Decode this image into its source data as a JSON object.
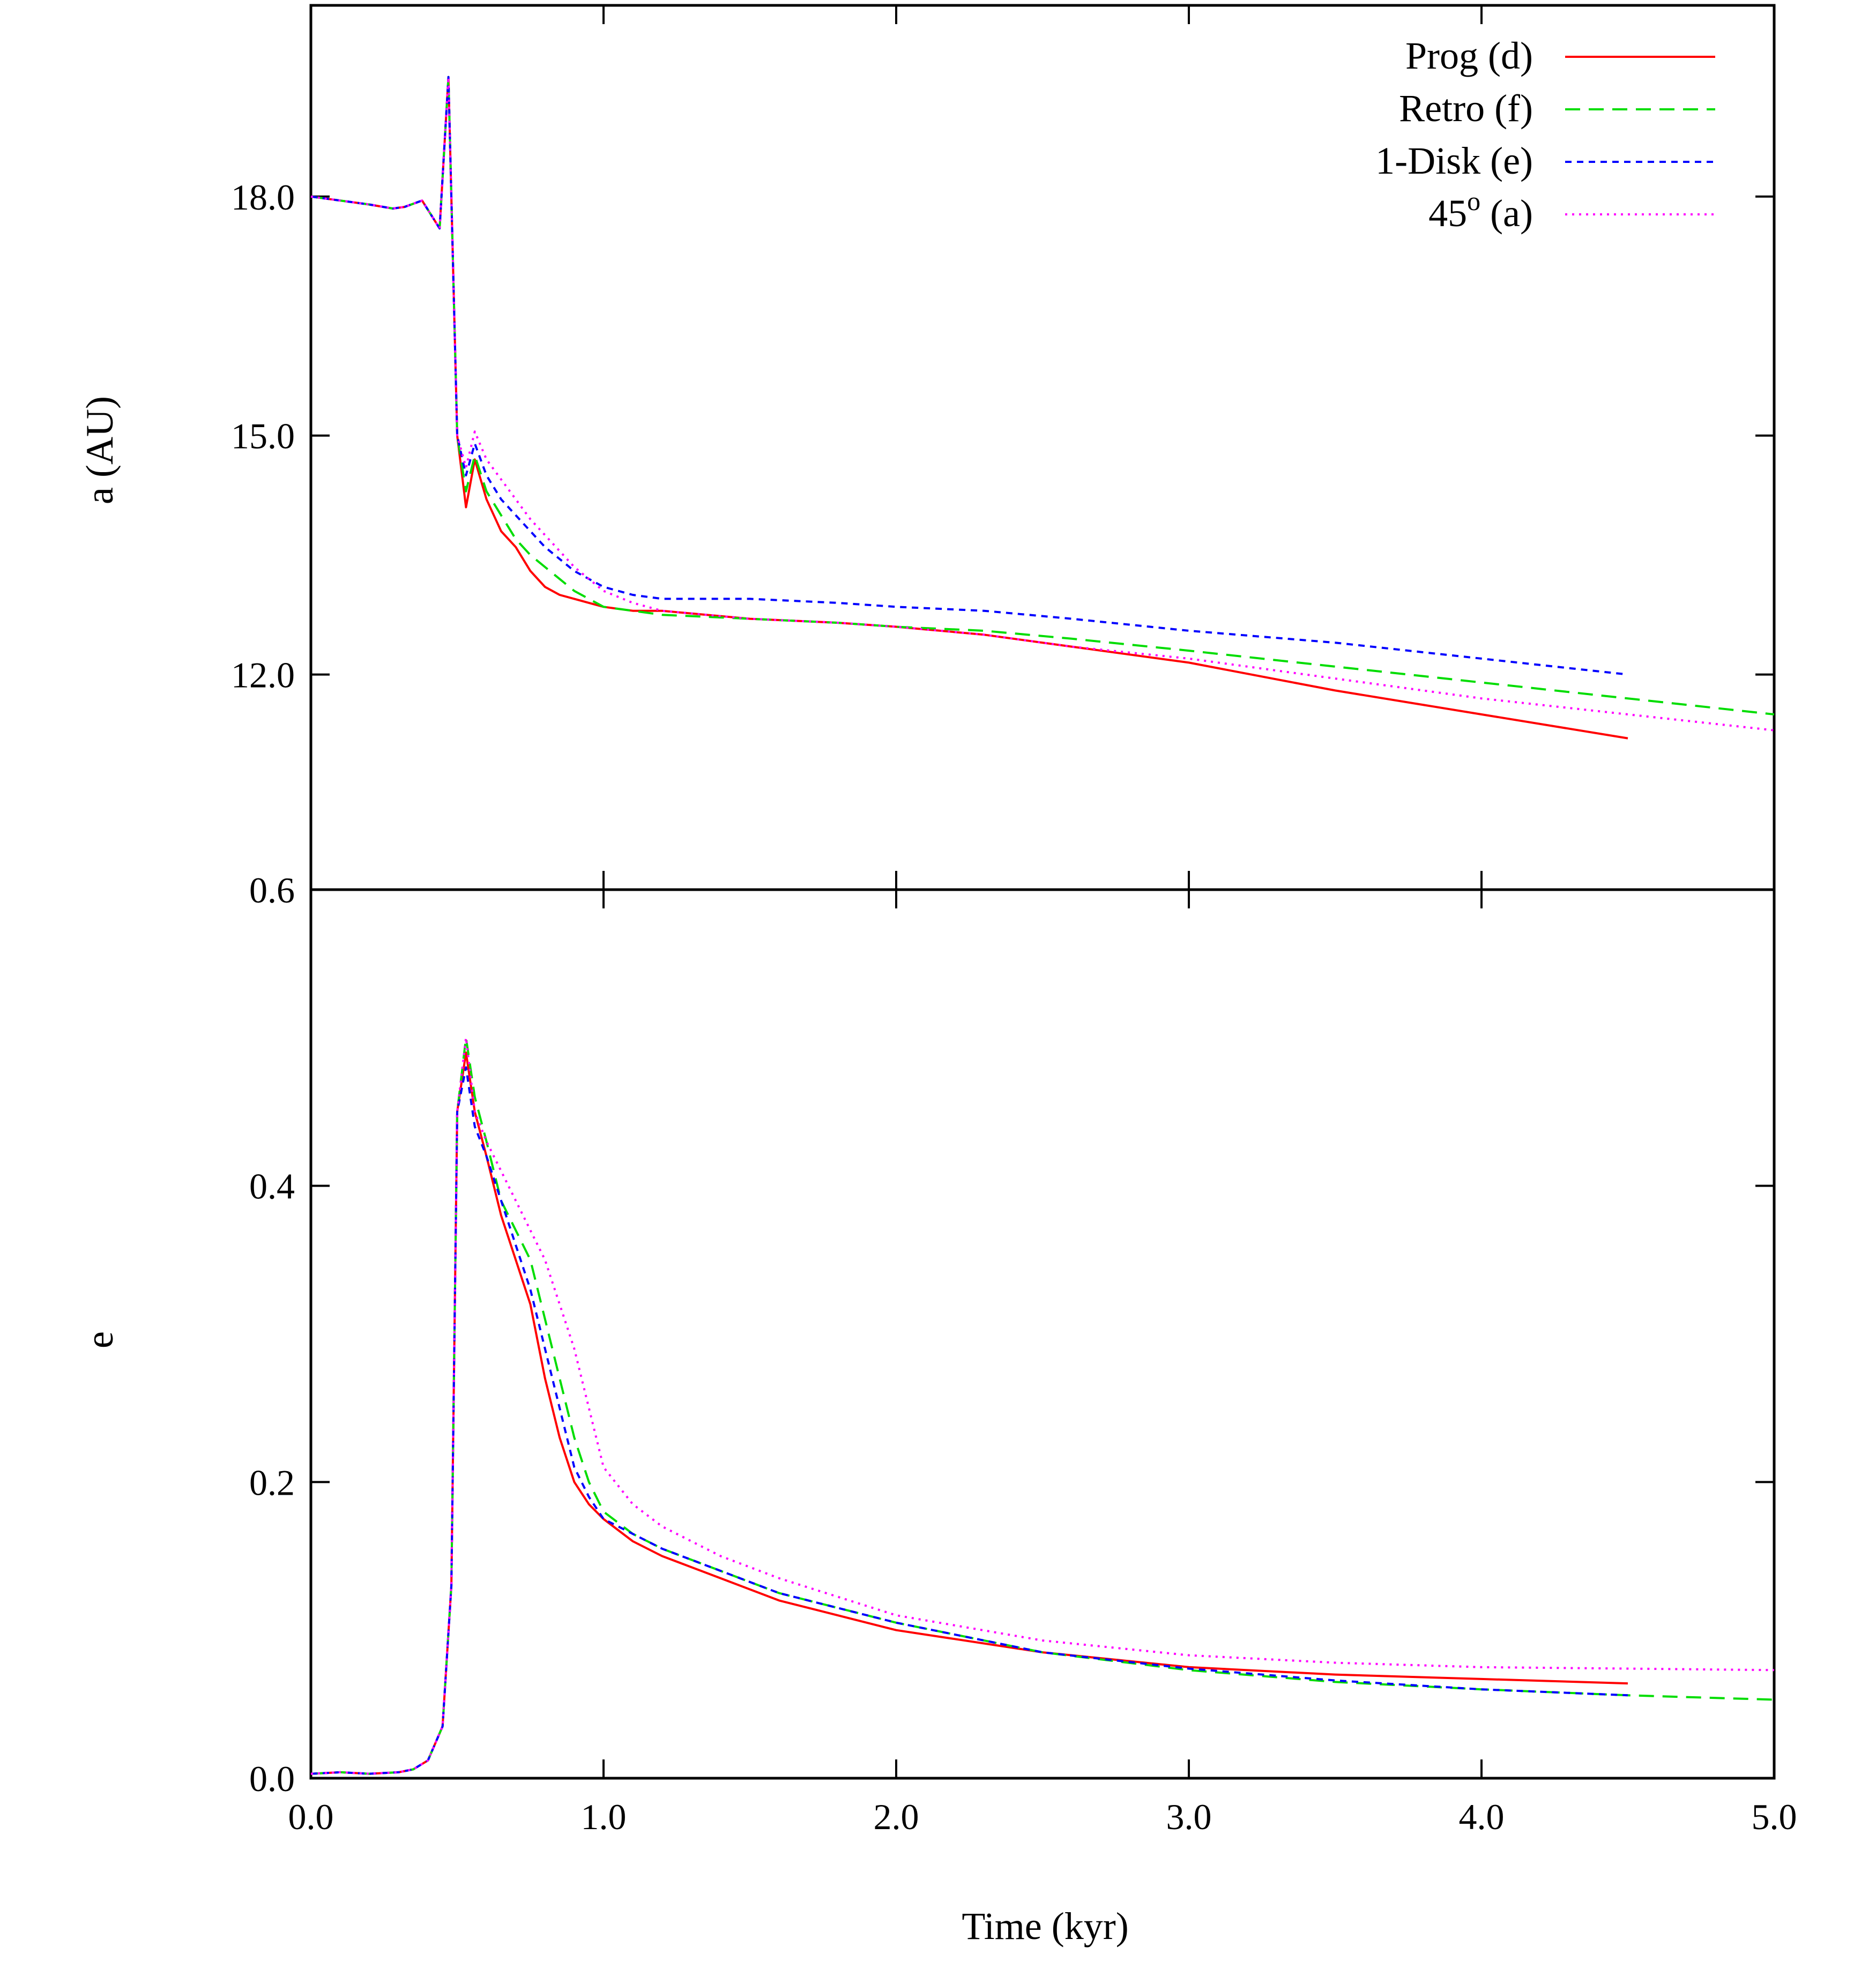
{
  "chart_data": [
    {
      "panel": "top",
      "type": "line",
      "xlabel": "",
      "ylabel": "a (AU)",
      "xlim": [
        0,
        5
      ],
      "ylim": [
        9.3,
        20.4
      ],
      "yticks": [
        {
          "value": 18.0,
          "label": "18.0"
        },
        {
          "value": 15.0,
          "label": "15.0"
        },
        {
          "value": 12.0,
          "label": "12.0"
        }
      ],
      "xticks": [
        1,
        2,
        3,
        4
      ],
      "legend": {
        "position": "top-right"
      },
      "series": [
        {
          "name": "Prog (d)",
          "color": "#ff0000",
          "dash": "none",
          "x": [
            0,
            0.1,
            0.2,
            0.28,
            0.32,
            0.38,
            0.44,
            0.47,
            0.5,
            0.53,
            0.56,
            0.6,
            0.65,
            0.7,
            0.75,
            0.8,
            0.85,
            0.9,
            0.95,
            1.0,
            1.1,
            1.2,
            1.5,
            1.8,
            2.0,
            2.3,
            2.6,
            3.0,
            3.5,
            4.0,
            4.5
          ],
          "y": [
            18.0,
            17.95,
            17.9,
            17.85,
            17.87,
            17.95,
            17.6,
            19.5,
            15.0,
            14.1,
            14.7,
            14.2,
            13.8,
            13.6,
            13.3,
            13.1,
            13.0,
            12.95,
            12.9,
            12.85,
            12.8,
            12.8,
            12.7,
            12.65,
            12.6,
            12.5,
            12.35,
            12.15,
            11.8,
            11.5,
            11.2
          ]
        },
        {
          "name": "Retro (f)",
          "color": "#00dd00",
          "dash": "28,16",
          "x": [
            0,
            0.1,
            0.2,
            0.28,
            0.32,
            0.38,
            0.44,
            0.47,
            0.5,
            0.53,
            0.56,
            0.6,
            0.65,
            0.7,
            0.75,
            0.8,
            0.85,
            0.9,
            0.95,
            1.0,
            1.1,
            1.2,
            1.5,
            1.8,
            2.0,
            2.3,
            2.6,
            3.0,
            3.5,
            4.0,
            4.5,
            5.0
          ],
          "y": [
            18.0,
            17.95,
            17.9,
            17.85,
            17.87,
            17.95,
            17.6,
            19.5,
            15.0,
            14.3,
            14.75,
            14.3,
            14.0,
            13.7,
            13.5,
            13.35,
            13.2,
            13.05,
            12.95,
            12.85,
            12.8,
            12.75,
            12.7,
            12.65,
            12.6,
            12.55,
            12.45,
            12.3,
            12.1,
            11.9,
            11.7,
            11.5
          ]
        },
        {
          "name": "1-Disk (e)",
          "color": "#0000ff",
          "dash": "12,10",
          "x": [
            0,
            0.1,
            0.2,
            0.28,
            0.32,
            0.38,
            0.44,
            0.47,
            0.5,
            0.53,
            0.56,
            0.6,
            0.65,
            0.7,
            0.75,
            0.8,
            0.85,
            0.9,
            0.95,
            1.0,
            1.1,
            1.2,
            1.5,
            1.8,
            2.0,
            2.3,
            2.6,
            3.0,
            3.5,
            4.0,
            4.5
          ],
          "y": [
            18.0,
            17.95,
            17.9,
            17.85,
            17.87,
            17.95,
            17.6,
            19.5,
            15.0,
            14.5,
            14.9,
            14.5,
            14.2,
            14.0,
            13.8,
            13.6,
            13.45,
            13.3,
            13.2,
            13.1,
            13.0,
            12.95,
            12.95,
            12.9,
            12.85,
            12.8,
            12.7,
            12.55,
            12.4,
            12.2,
            12.0
          ]
        },
        {
          "name": "45o (a)",
          "color": "#ff00ff",
          "dash": "4,9",
          "x": [
            0,
            0.1,
            0.2,
            0.28,
            0.32,
            0.38,
            0.44,
            0.47,
            0.5,
            0.53,
            0.56,
            0.6,
            0.65,
            0.7,
            0.75,
            0.8,
            0.85,
            0.9,
            0.95,
            1.0,
            1.1,
            1.2,
            1.5,
            1.8,
            2.0,
            2.3,
            2.6,
            3.0,
            3.5,
            4.0,
            4.5,
            5.0
          ],
          "y": [
            18.0,
            17.95,
            17.9,
            17.85,
            17.87,
            17.95,
            17.6,
            19.5,
            15.0,
            14.6,
            15.05,
            14.7,
            14.45,
            14.2,
            13.95,
            13.75,
            13.55,
            13.35,
            13.2,
            13.05,
            12.9,
            12.8,
            12.7,
            12.65,
            12.6,
            12.5,
            12.35,
            12.2,
            11.95,
            11.7,
            11.5,
            11.3
          ]
        }
      ]
    },
    {
      "panel": "bottom",
      "type": "line",
      "xlabel": "Time (kyr)",
      "ylabel": "e",
      "xlim": [
        0,
        5
      ],
      "ylim": [
        0,
        0.6
      ],
      "yticks": [
        {
          "value": 0.6,
          "label": "0.6"
        },
        {
          "value": 0.4,
          "label": "0.4"
        },
        {
          "value": 0.2,
          "label": "0.2"
        },
        {
          "value": 0.0,
          "label": "0.0"
        }
      ],
      "xticks": [
        {
          "value": 0.0,
          "label": "0.0"
        },
        {
          "value": 1.0,
          "label": "1.0"
        },
        {
          "value": 2.0,
          "label": "2.0"
        },
        {
          "value": 3.0,
          "label": "3.0"
        },
        {
          "value": 4.0,
          "label": "4.0"
        },
        {
          "value": 5.0,
          "label": "5.0"
        }
      ],
      "series": [
        {
          "name": "Prog (d)",
          "color": "#ff0000",
          "dash": "none",
          "x": [
            0,
            0.1,
            0.2,
            0.3,
            0.35,
            0.4,
            0.45,
            0.48,
            0.5,
            0.53,
            0.56,
            0.6,
            0.65,
            0.7,
            0.75,
            0.8,
            0.85,
            0.9,
            0.95,
            1.0,
            1.1,
            1.2,
            1.4,
            1.6,
            2.0,
            2.5,
            3.0,
            3.5,
            4.0,
            4.5
          ],
          "y": [
            0.003,
            0.004,
            0.003,
            0.004,
            0.006,
            0.012,
            0.035,
            0.13,
            0.45,
            0.49,
            0.45,
            0.42,
            0.38,
            0.35,
            0.32,
            0.27,
            0.23,
            0.2,
            0.185,
            0.175,
            0.16,
            0.15,
            0.135,
            0.12,
            0.1,
            0.085,
            0.075,
            0.07,
            0.067,
            0.064
          ]
        },
        {
          "name": "Retro (f)",
          "color": "#00dd00",
          "dash": "28,16",
          "x": [
            0,
            0.1,
            0.2,
            0.3,
            0.35,
            0.4,
            0.45,
            0.48,
            0.5,
            0.53,
            0.56,
            0.6,
            0.65,
            0.7,
            0.75,
            0.8,
            0.85,
            0.9,
            0.95,
            1.0,
            1.1,
            1.2,
            1.4,
            1.6,
            2.0,
            2.5,
            3.0,
            3.5,
            4.0,
            4.5,
            5.0
          ],
          "y": [
            0.003,
            0.004,
            0.003,
            0.004,
            0.006,
            0.012,
            0.035,
            0.13,
            0.45,
            0.5,
            0.46,
            0.43,
            0.39,
            0.37,
            0.35,
            0.31,
            0.27,
            0.23,
            0.2,
            0.18,
            0.165,
            0.155,
            0.14,
            0.125,
            0.105,
            0.085,
            0.073,
            0.065,
            0.06,
            0.056,
            0.053
          ]
        },
        {
          "name": "1-Disk (e)",
          "color": "#0000ff",
          "dash": "12,10",
          "x": [
            0,
            0.1,
            0.2,
            0.3,
            0.35,
            0.4,
            0.45,
            0.48,
            0.5,
            0.53,
            0.56,
            0.6,
            0.65,
            0.7,
            0.75,
            0.8,
            0.85,
            0.9,
            0.95,
            1.0,
            1.1,
            1.2,
            1.4,
            1.6,
            2.0,
            2.5,
            3.0,
            3.5,
            4.0,
            4.5
          ],
          "y": [
            0.003,
            0.004,
            0.003,
            0.004,
            0.006,
            0.012,
            0.035,
            0.13,
            0.45,
            0.48,
            0.44,
            0.42,
            0.39,
            0.36,
            0.33,
            0.29,
            0.25,
            0.21,
            0.19,
            0.175,
            0.165,
            0.155,
            0.14,
            0.125,
            0.105,
            0.085,
            0.074,
            0.066,
            0.06,
            0.056
          ]
        },
        {
          "name": "45o (a)",
          "color": "#ff00ff",
          "dash": "4,9",
          "x": [
            0,
            0.1,
            0.2,
            0.3,
            0.35,
            0.4,
            0.45,
            0.48,
            0.5,
            0.53,
            0.56,
            0.6,
            0.65,
            0.7,
            0.75,
            0.8,
            0.85,
            0.9,
            0.95,
            1.0,
            1.1,
            1.2,
            1.4,
            1.6,
            2.0,
            2.5,
            3.0,
            3.5,
            4.0,
            4.5,
            5.0
          ],
          "y": [
            0.003,
            0.004,
            0.003,
            0.004,
            0.006,
            0.012,
            0.035,
            0.13,
            0.45,
            0.5,
            0.45,
            0.43,
            0.41,
            0.39,
            0.37,
            0.35,
            0.32,
            0.29,
            0.25,
            0.21,
            0.185,
            0.17,
            0.15,
            0.135,
            0.11,
            0.093,
            0.083,
            0.078,
            0.075,
            0.074,
            0.073
          ]
        }
      ]
    }
  ],
  "legend_items": [
    {
      "label": "Prog (d)"
    },
    {
      "label": "Retro (f)"
    },
    {
      "label": "1-Disk (e)"
    },
    {
      "base": "45",
      "sup": "o",
      "rest": " (a)"
    }
  ]
}
